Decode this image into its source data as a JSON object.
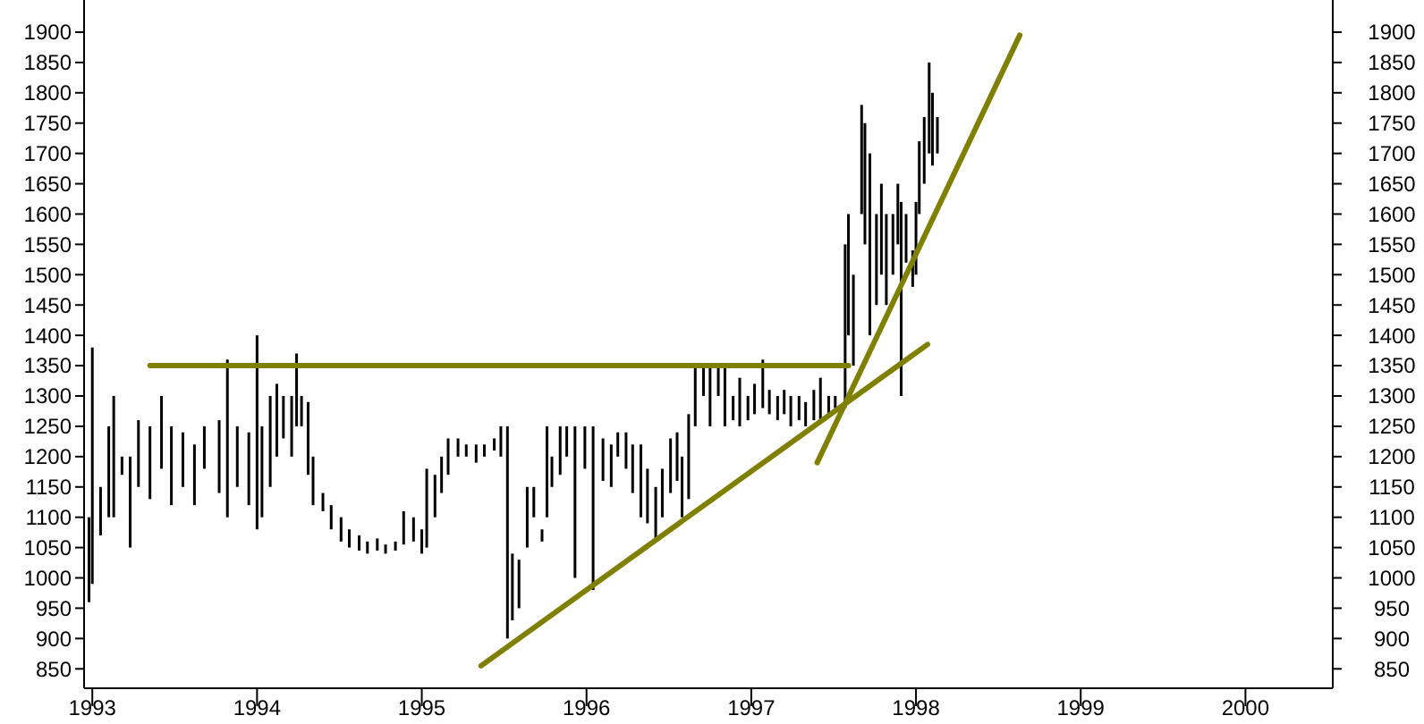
{
  "chart_data": {
    "type": "bar",
    "xlim": [
      1992.95,
      2000.53
    ],
    "xticks": [
      1993,
      1994,
      1995,
      1996,
      1997,
      1998,
      1999,
      2000
    ],
    "ylim": [
      818,
      1953
    ],
    "yticks": [
      850,
      900,
      950,
      1000,
      1050,
      1100,
      1150,
      1200,
      1250,
      1300,
      1350,
      1400,
      1450,
      1500,
      1550,
      1600,
      1650,
      1700,
      1750,
      1800,
      1850,
      1900
    ],
    "y2lim": [
      818,
      1953
    ],
    "y2ticks": [
      850,
      900,
      950,
      1000,
      1050,
      1100,
      1150,
      1200,
      1250,
      1300,
      1350,
      1400,
      1450,
      1500,
      1550,
      1600,
      1650,
      1700,
      1750,
      1800,
      1850,
      1900
    ],
    "series": [
      {
        "color": "#000000",
        "x": [
          1992.98,
          1993.0,
          1993.05,
          1993.1,
          1993.13,
          1993.18,
          1993.23,
          1993.28,
          1993.35,
          1993.42,
          1993.48,
          1993.55,
          1993.62,
          1993.68,
          1993.77,
          1993.82,
          1993.88,
          1993.95,
          1994.0,
          1994.03,
          1994.08,
          1994.12,
          1994.16,
          1994.21,
          1994.24,
          1994.27,
          1994.31,
          1994.34,
          1994.4,
          1994.45,
          1994.51,
          1994.56,
          1994.62,
          1994.67,
          1994.73,
          1994.78,
          1994.84,
          1994.89,
          1994.95,
          1995.0,
          1995.03,
          1995.08,
          1995.12,
          1995.16,
          1995.22,
          1995.27,
          1995.33,
          1995.38,
          1995.44,
          1995.48,
          1995.52,
          1995.55,
          1995.59,
          1995.64,
          1995.68,
          1995.73,
          1995.76,
          1995.79,
          1995.84,
          1995.88,
          1995.93,
          1995.99,
          1996.04,
          1996.1,
          1996.15,
          1996.19,
          1996.24,
          1996.28,
          1996.33,
          1996.37,
          1996.42,
          1996.46,
          1996.51,
          1996.55,
          1996.58,
          1996.62,
          1996.66,
          1996.71,
          1996.75,
          1996.8,
          1996.84,
          1996.89,
          1996.93,
          1996.98,
          1997.02,
          1997.07,
          1997.11,
          1997.16,
          1997.2,
          1997.24,
          1997.29,
          1997.33,
          1997.38,
          1997.42,
          1997.47,
          1997.51,
          1997.57,
          1997.59,
          1997.62,
          1997.67,
          1997.69,
          1997.72,
          1997.76,
          1997.79,
          1997.82,
          1997.86,
          1997.89,
          1997.91,
          1997.94,
          1997.98,
          1998.0,
          1998.02,
          1998.05,
          1998.08,
          1998.1,
          1998.13
        ],
        "base": [
          960,
          990,
          1070,
          1100,
          1100,
          1170,
          1050,
          1150,
          1130,
          1180,
          1120,
          1150,
          1120,
          1180,
          1140,
          1100,
          1150,
          1120,
          1080,
          1100,
          1150,
          1200,
          1230,
          1200,
          1250,
          1250,
          1170,
          1120,
          1110,
          1080,
          1060,
          1050,
          1045,
          1040,
          1045,
          1040,
          1045,
          1055,
          1060,
          1040,
          1050,
          1100,
          1140,
          1170,
          1200,
          1200,
          1190,
          1200,
          1210,
          1200,
          900,
          930,
          950,
          1050,
          1100,
          1060,
          1100,
          1150,
          1170,
          1200,
          1000,
          1180,
          980,
          1160,
          1150,
          1200,
          1180,
          1140,
          1100,
          1090,
          1060,
          1100,
          1140,
          1160,
          1100,
          1130,
          1250,
          1300,
          1250,
          1300,
          1250,
          1260,
          1250,
          1260,
          1270,
          1280,
          1270,
          1260,
          1270,
          1250,
          1260,
          1250,
          1260,
          1260,
          1270,
          1280,
          1280,
          1400,
          1350,
          1600,
          1550,
          1400,
          1450,
          1500,
          1450,
          1500,
          1550,
          1300,
          1520,
          1480,
          1500,
          1600,
          1650,
          1700,
          1680,
          1700
        ],
        "values": [
          140,
          390,
          80,
          150,
          200,
          30,
          150,
          110,
          120,
          120,
          130,
          90,
          100,
          70,
          120,
          260,
          100,
          120,
          320,
          150,
          150,
          120,
          70,
          100,
          120,
          50,
          120,
          80,
          30,
          40,
          40,
          30,
          25,
          20,
          20,
          15,
          15,
          55,
          40,
          40,
          130,
          70,
          60,
          60,
          30,
          20,
          30,
          20,
          20,
          50,
          350,
          110,
          80,
          100,
          50,
          20,
          150,
          50,
          80,
          50,
          250,
          70,
          270,
          70,
          70,
          40,
          60,
          80,
          120,
          90,
          90,
          80,
          90,
          80,
          100,
          140,
          100,
          50,
          100,
          50,
          100,
          40,
          80,
          40,
          50,
          80,
          40,
          40,
          40,
          50,
          40,
          40,
          50,
          70,
          30,
          20,
          270,
          200,
          150,
          180,
          200,
          300,
          150,
          150,
          150,
          100,
          100,
          320,
          80,
          60,
          120,
          120,
          110,
          150,
          120,
          60
        ]
      },
      {
        "type": "line",
        "color": "#808000",
        "x": [
          1993.35,
          1997.59
        ],
        "values": [
          1350,
          1350
        ]
      },
      {
        "type": "line",
        "color": "#808000",
        "x": [
          1995.36,
          1998.07
        ],
        "values": [
          855,
          1385
        ]
      },
      {
        "type": "line",
        "color": "#808000",
        "x": [
          1997.4,
          1998.63
        ],
        "values": [
          1190,
          1895
        ]
      }
    ]
  }
}
